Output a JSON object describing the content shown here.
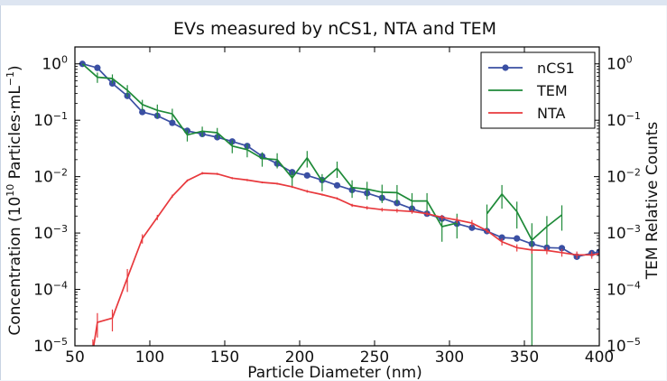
{
  "chart_data": {
    "type": "line",
    "title": "EVs measured by nCS1, NTA and TEM",
    "xlabel": "Particle Diameter (nm)",
    "ylabel_left": {
      "pre": "Concentration (10",
      "exp": "10",
      "post": " Particles·mL",
      "post_exp": "−1",
      "close": ")"
    },
    "ylabel_right": "TEM Relative Counts",
    "xlim": [
      50,
      400
    ],
    "ylim_log10": [
      -5,
      0.3
    ],
    "x_ticks": [
      50,
      100,
      150,
      200,
      250,
      300,
      350,
      400
    ],
    "y_ticks": [
      {
        "exp": 0,
        "base": "10",
        "sup": "0"
      },
      {
        "exp": -1,
        "base": "10",
        "sup": "−1"
      },
      {
        "exp": -2,
        "base": "10",
        "sup": "−2"
      },
      {
        "exp": -3,
        "base": "10",
        "sup": "−3"
      },
      {
        "exp": -4,
        "base": "10",
        "sup": "−4"
      },
      {
        "exp": -5,
        "base": "10",
        "sup": "−5"
      }
    ],
    "legend": {
      "position": "top-right",
      "entries": [
        "nCS1",
        "TEM",
        "NTA"
      ]
    },
    "series": [
      {
        "name": "nCS1",
        "color": "#3a4fa3",
        "marker": "circle",
        "x": [
          55,
          65,
          75,
          85,
          95,
          105,
          115,
          125,
          135,
          145,
          155,
          165,
          175,
          185,
          195,
          205,
          215,
          225,
          235,
          245,
          255,
          265,
          275,
          285,
          295,
          305,
          315,
          325,
          335,
          345,
          355,
          365,
          375,
          385,
          395,
          400
        ],
        "y": [
          1.0,
          0.85,
          0.45,
          0.27,
          0.14,
          0.12,
          0.09,
          0.065,
          0.057,
          0.05,
          0.042,
          0.035,
          0.023,
          0.017,
          0.012,
          0.0105,
          0.0087,
          0.007,
          0.0058,
          0.0051,
          0.0042,
          0.0034,
          0.0027,
          0.0022,
          0.0018,
          0.00146,
          0.00124,
          0.00108,
          0.00083,
          0.0008,
          0.00064,
          0.00055,
          0.00054,
          0.00038,
          0.00044,
          0.00046
        ]
      },
      {
        "name": "TEM",
        "color": "#1e8a38",
        "x": [
          55,
          65,
          75,
          85,
          95,
          105,
          115,
          125,
          135,
          145,
          155,
          165,
          175,
          185,
          195,
          205,
          215,
          225,
          235,
          245,
          255,
          265,
          275,
          285,
          295,
          305
        ],
        "y": [
          1.0,
          0.58,
          0.55,
          0.34,
          0.19,
          0.15,
          0.13,
          0.055,
          0.064,
          0.06,
          0.035,
          0.03,
          0.021,
          0.02,
          0.0095,
          0.0215,
          0.0083,
          0.014,
          0.0064,
          0.006,
          0.0053,
          0.0052,
          0.0037,
          0.0037,
          0.0013,
          0.0015
        ],
        "err": [
          0,
          0.12,
          0.1,
          0.08,
          0.04,
          0.04,
          0.03,
          0.013,
          0.013,
          0.013,
          0.009,
          0.008,
          0.006,
          0.006,
          0.003,
          0.007,
          0.0028,
          0.0045,
          0.0022,
          0.0021,
          0.0019,
          0.0019,
          0.0014,
          0.0014,
          0.0006,
          0.0007
        ],
        "segment2": {
          "x": [
            325,
            335,
            345,
            355,
            365,
            375
          ],
          "y": [
            0.0022,
            0.0049,
            0.0024,
            0.00075,
            0.0013,
            0.0021
          ],
          "err": [
            0.001,
            0.0022,
            0.0012,
            0.00074,
            0.0007,
            0.001
          ]
        }
      },
      {
        "name": "NTA",
        "color": "#e8393d",
        "x": [
          62,
          65,
          75,
          85,
          95,
          105,
          115,
          125,
          135,
          145,
          155,
          165,
          175,
          185,
          195,
          205,
          215,
          225,
          235,
          245,
          255,
          265,
          275,
          285,
          295,
          305,
          315,
          325,
          335,
          345,
          355,
          365,
          375,
          385,
          395,
          400
        ],
        "y": [
          8e-06,
          2.6e-05,
          3.1e-05,
          0.00016,
          0.0008,
          0.0019,
          0.0045,
          0.0085,
          0.0115,
          0.0112,
          0.0094,
          0.0087,
          0.0079,
          0.0075,
          0.0066,
          0.0055,
          0.0048,
          0.0041,
          0.0031,
          0.0028,
          0.0026,
          0.0025,
          0.0024,
          0.0022,
          0.0019,
          0.0017,
          0.0015,
          0.0011,
          0.0007,
          0.00055,
          0.0005,
          0.00049,
          0.00045,
          0.00041,
          0.00041,
          0.00043
        ],
        "err": [
          5e-06,
          1.2e-05,
          1.3e-05,
          7e-05,
          0.00015,
          0.0002,
          0.0003,
          0.0004,
          0.0006,
          0.0005,
          0.0004,
          0.0004,
          0.0003,
          0.0003,
          0.0003,
          0.0003,
          0.0002,
          0.0002,
          0.0002,
          0.0002,
          0.0002,
          0.0002,
          0.0002,
          0.0002,
          0.0002,
          0.0002,
          0.0002,
          0.0001,
          0.0001,
          8e-05,
          7e-05,
          7e-05,
          7e-05,
          6e-05,
          6e-05,
          6e-05
        ]
      }
    ]
  }
}
